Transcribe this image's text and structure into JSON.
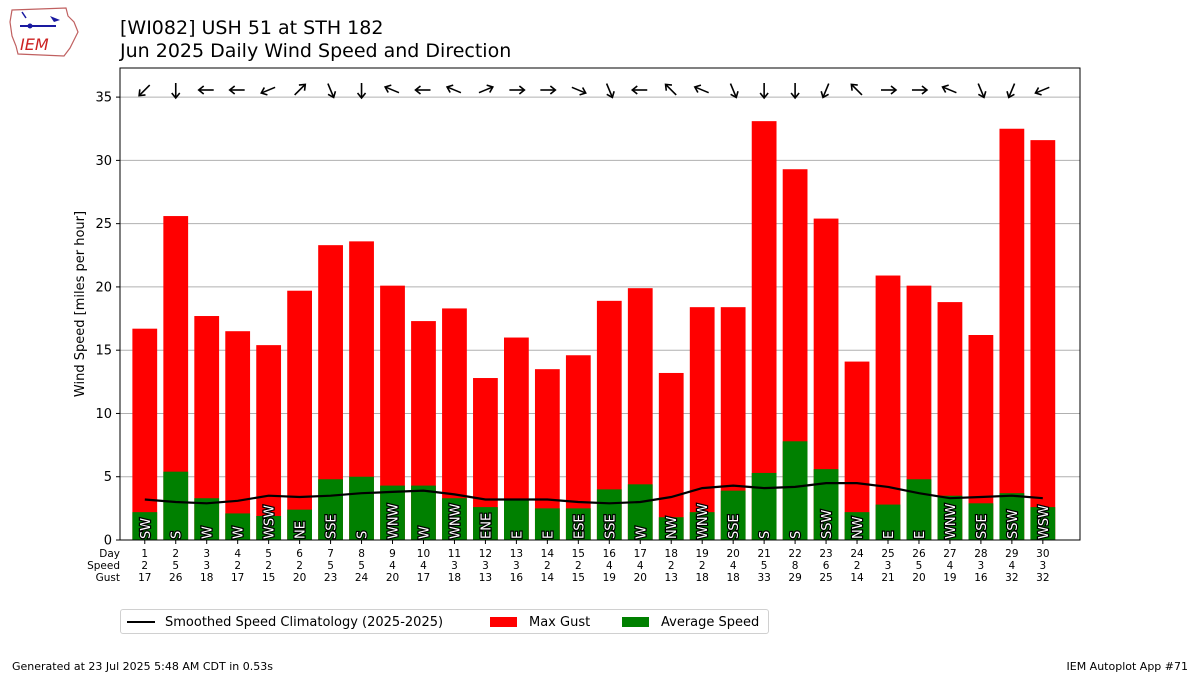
{
  "logo": {
    "text": "IEM"
  },
  "title": {
    "line1": "[WI082] USH 51 at STH 182",
    "line2": "Jun 2025 Daily Wind Speed and Direction"
  },
  "legend": {
    "climatology": "Smoothed Speed Climatology (2025-2025)",
    "max_gust": "Max Gust",
    "average_speed": "Average Speed"
  },
  "footer": {
    "left": "Generated at 23 Jul 2025 5:48 AM CDT in 0.53s",
    "right": "IEM Autoplot App #71"
  },
  "colors": {
    "gust": "#ff0000",
    "speed": "#008000",
    "climatology": "#000000",
    "grid": "#b0b0b0"
  },
  "chart_data": {
    "type": "bar",
    "ylabel": "Wind Speed [miles per hour]",
    "ylim": [
      0,
      37.3
    ],
    "yticks": [
      0,
      5,
      10,
      15,
      20,
      25,
      30,
      35
    ],
    "grid": "horizontal",
    "legend_position": "below",
    "row_labels": [
      "Day",
      "Speed",
      "Gust"
    ],
    "days": [
      1,
      2,
      3,
      4,
      5,
      6,
      7,
      8,
      9,
      10,
      11,
      12,
      13,
      14,
      15,
      16,
      17,
      18,
      19,
      20,
      21,
      22,
      23,
      24,
      25,
      26,
      27,
      28,
      29,
      30
    ],
    "speed_labels": [
      2,
      5,
      3,
      2,
      2,
      2,
      5,
      5,
      4,
      4,
      3,
      3,
      3,
      2,
      2,
      4,
      4,
      2,
      2,
      4,
      5,
      8,
      6,
      2,
      3,
      5,
      4,
      3,
      4,
      3
    ],
    "gust_labels": [
      17,
      26,
      18,
      17,
      15,
      20,
      23,
      24,
      20,
      17,
      18,
      13,
      16,
      14,
      15,
      19,
      20,
      13,
      18,
      18,
      33,
      29,
      25,
      14,
      21,
      20,
      19,
      16,
      32,
      32
    ],
    "series": [
      {
        "name": "Max Gust",
        "values": [
          16.7,
          25.6,
          17.7,
          16.5,
          15.4,
          19.7,
          23.3,
          23.6,
          20.1,
          17.3,
          18.3,
          12.8,
          16.0,
          13.5,
          14.6,
          18.9,
          19.9,
          13.2,
          18.4,
          18.4,
          33.1,
          29.3,
          25.4,
          14.1,
          20.9,
          20.1,
          18.8,
          16.2,
          32.5,
          31.6
        ]
      },
      {
        "name": "Average Speed",
        "values": [
          2.2,
          5.4,
          3.3,
          2.1,
          1.9,
          2.4,
          4.8,
          5.0,
          4.3,
          4.3,
          3.3,
          2.6,
          3.2,
          2.5,
          2.5,
          4.0,
          4.4,
          1.8,
          2.2,
          3.9,
          5.3,
          7.8,
          5.6,
          2.2,
          2.8,
          4.8,
          3.5,
          2.9,
          3.7,
          2.6
        ]
      },
      {
        "name": "Smoothed Speed Climatology (2025-2025)",
        "values": [
          3.2,
          3.0,
          2.9,
          3.1,
          3.5,
          3.4,
          3.5,
          3.7,
          3.8,
          3.9,
          3.6,
          3.2,
          3.2,
          3.2,
          3.0,
          2.9,
          3.0,
          3.4,
          4.1,
          4.3,
          4.1,
          4.2,
          4.5,
          4.5,
          4.2,
          3.7,
          3.3,
          3.4,
          3.5,
          3.3
        ]
      }
    ],
    "direction_labels": [
      "SW",
      "S",
      "W",
      "W",
      "WSW",
      "NE",
      "SSE",
      "S",
      "WNW",
      "W",
      "WNW",
      "ENE",
      "E",
      "E",
      "ESE",
      "SSE",
      "W",
      "NW",
      "WNW",
      "SSE",
      "S",
      "S",
      "SSW",
      "NW",
      "E",
      "E",
      "WNW",
      "SSE",
      "SSW",
      "WSW"
    ],
    "arrow_directions_deg": [
      225,
      180,
      270,
      270,
      247.5,
      45,
      157.5,
      180,
      292.5,
      270,
      292.5,
      67.5,
      90,
      90,
      112.5,
      157.5,
      270,
      315,
      292.5,
      157.5,
      180,
      180,
      202.5,
      315,
      90,
      90,
      292.5,
      157.5,
      202.5,
      247.5
    ]
  }
}
